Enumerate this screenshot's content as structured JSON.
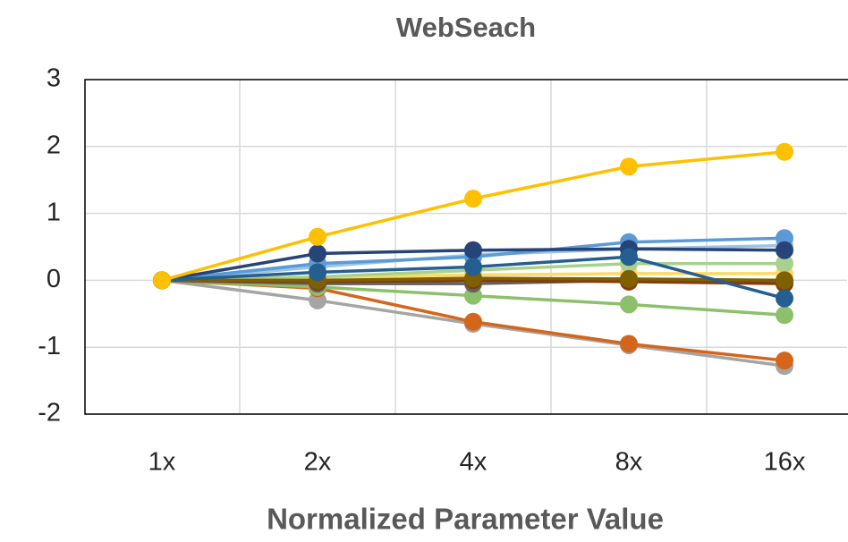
{
  "chart_data": {
    "type": "line",
    "title": "WebSeach",
    "x_label": "Normalized Parameter Value",
    "categories": [
      "1x",
      "2x",
      "4x",
      "8x",
      "16x"
    ],
    "ylim": [
      -2,
      3
    ],
    "yticks": [
      -2,
      -1,
      0,
      1,
      2,
      3
    ],
    "grid": true,
    "series": [
      {
        "color": "#A5A5A5",
        "values": [
          0,
          -0.3,
          -0.65,
          -0.97,
          -1.28
        ]
      },
      {
        "color": "#D4661B",
        "values": [
          0,
          -0.12,
          -0.62,
          -0.95,
          -1.2
        ]
      },
      {
        "color": "#8DC06B",
        "values": [
          0,
          -0.1,
          -0.23,
          -0.36,
          -0.52
        ]
      },
      {
        "color": "#636363",
        "values": [
          0,
          -0.05,
          -0.05,
          0,
          -0.03
        ]
      },
      {
        "color": "#843C0C",
        "values": [
          0,
          -0.02,
          0,
          -0.02,
          -0.05
        ]
      },
      {
        "color": "#FFD966",
        "values": [
          0,
          0.05,
          0.08,
          0.1,
          0.1
        ]
      },
      {
        "color": "#A9D18E",
        "values": [
          0,
          0.05,
          0.15,
          0.25,
          0.25
        ]
      },
      {
        "color": "#9DC3E6",
        "values": [
          0,
          0.2,
          0.38,
          0.47,
          0.52
        ]
      },
      {
        "color": "#5B9BD5",
        "values": [
          0,
          0.25,
          0.35,
          0.57,
          0.63
        ]
      },
      {
        "color": "#264478",
        "values": [
          0,
          0.4,
          0.45,
          0.47,
          0.45
        ]
      },
      {
        "color": "#7F6000",
        "values": [
          0,
          0,
          0.03,
          0.02,
          0
        ]
      },
      {
        "color": "#255E91",
        "values": [
          0,
          0.12,
          0.2,
          0.35,
          -0.27
        ]
      },
      {
        "color": "#FFC000",
        "values": [
          0,
          0.65,
          1.22,
          1.7,
          1.92
        ]
      }
    ]
  }
}
